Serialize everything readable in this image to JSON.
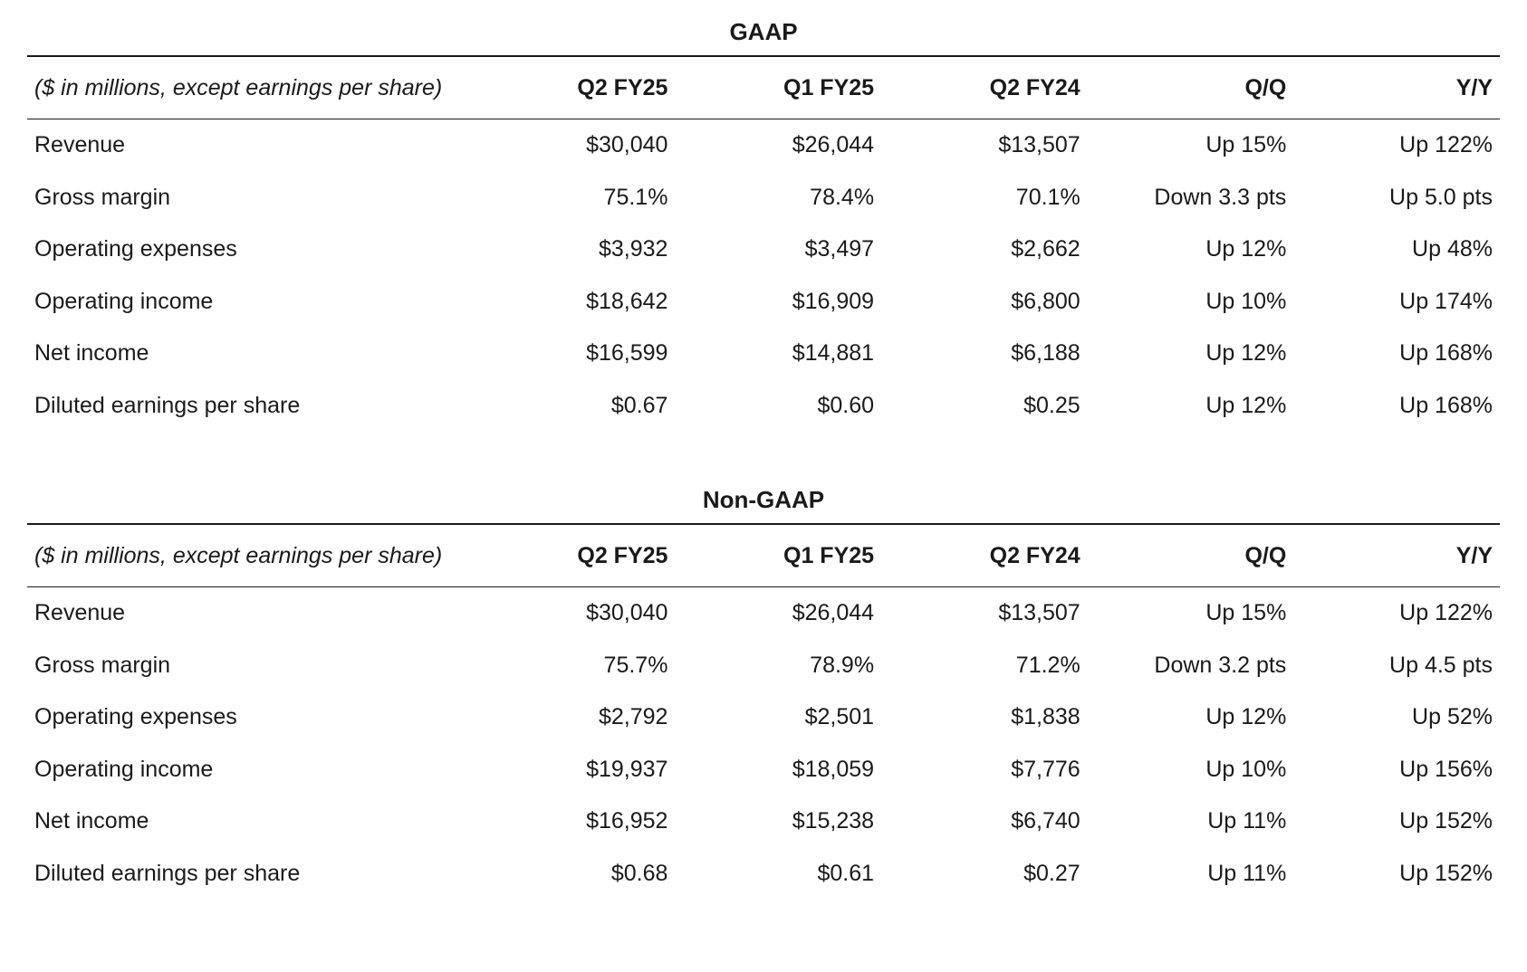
{
  "tables": [
    {
      "title": "GAAP",
      "note": "($ in millions, except earnings per share)",
      "columns": [
        "Q2 FY25",
        "Q1 FY25",
        "Q2 FY24",
        "Q/Q",
        "Y/Y"
      ],
      "rows": [
        {
          "label": "Revenue",
          "cells": [
            "$30,040",
            "$26,044",
            "$13,507",
            "Up 15%",
            "Up 122%"
          ]
        },
        {
          "label": "Gross margin",
          "cells": [
            "75.1%",
            "78.4%",
            "70.1%",
            "Down 3.3 pts",
            "Up 5.0 pts"
          ]
        },
        {
          "label": "Operating expenses",
          "cells": [
            "$3,932",
            "$3,497",
            "$2,662",
            "Up 12%",
            "Up 48%"
          ]
        },
        {
          "label": "Operating income",
          "cells": [
            "$18,642",
            "$16,909",
            "$6,800",
            "Up 10%",
            "Up 174%"
          ]
        },
        {
          "label": "Net income",
          "cells": [
            "$16,599",
            "$14,881",
            "$6,188",
            "Up 12%",
            "Up 168%"
          ]
        },
        {
          "label": "Diluted earnings per share",
          "cells": [
            "$0.67",
            "$0.60",
            "$0.25",
            "Up 12%",
            "Up 168%"
          ]
        }
      ]
    },
    {
      "title": "Non-GAAP",
      "note": "($ in millions, except earnings per share)",
      "columns": [
        "Q2 FY25",
        "Q1 FY25",
        "Q2 FY24",
        "Q/Q",
        "Y/Y"
      ],
      "rows": [
        {
          "label": "Revenue",
          "cells": [
            "$30,040",
            "$26,044",
            "$13,507",
            "Up 15%",
            "Up 122%"
          ]
        },
        {
          "label": "Gross margin",
          "cells": [
            "75.7%",
            "78.9%",
            "71.2%",
            "Down 3.2 pts",
            "Up 4.5 pts"
          ]
        },
        {
          "label": "Operating expenses",
          "cells": [
            "$2,792",
            "$2,501",
            "$1,838",
            "Up 12%",
            "Up 52%"
          ]
        },
        {
          "label": "Operating income",
          "cells": [
            "$19,937",
            "$18,059",
            "$7,776",
            "Up 10%",
            "Up 156%"
          ]
        },
        {
          "label": "Net income",
          "cells": [
            "$16,952",
            "$15,238",
            "$6,740",
            "Up 11%",
            "Up 152%"
          ]
        },
        {
          "label": "Diluted earnings per share",
          "cells": [
            "$0.68",
            "$0.61",
            "$0.27",
            "Up 11%",
            "Up 152%"
          ]
        }
      ]
    }
  ],
  "styling": {
    "background_color": "#ffffff",
    "text_color": "#1a1a1a",
    "border_color": "#1a1a1a",
    "font_family": "-apple-system, BlinkMacSystemFont, Segoe UI, Helvetica, Arial, sans-serif",
    "title_fontsize": 26,
    "header_fontsize": 25,
    "cell_fontsize": 25,
    "column_widths_pct": [
      30,
      14,
      14,
      14,
      14,
      14
    ],
    "column_alignments": [
      "left",
      "right",
      "right",
      "right",
      "right",
      "right"
    ]
  }
}
